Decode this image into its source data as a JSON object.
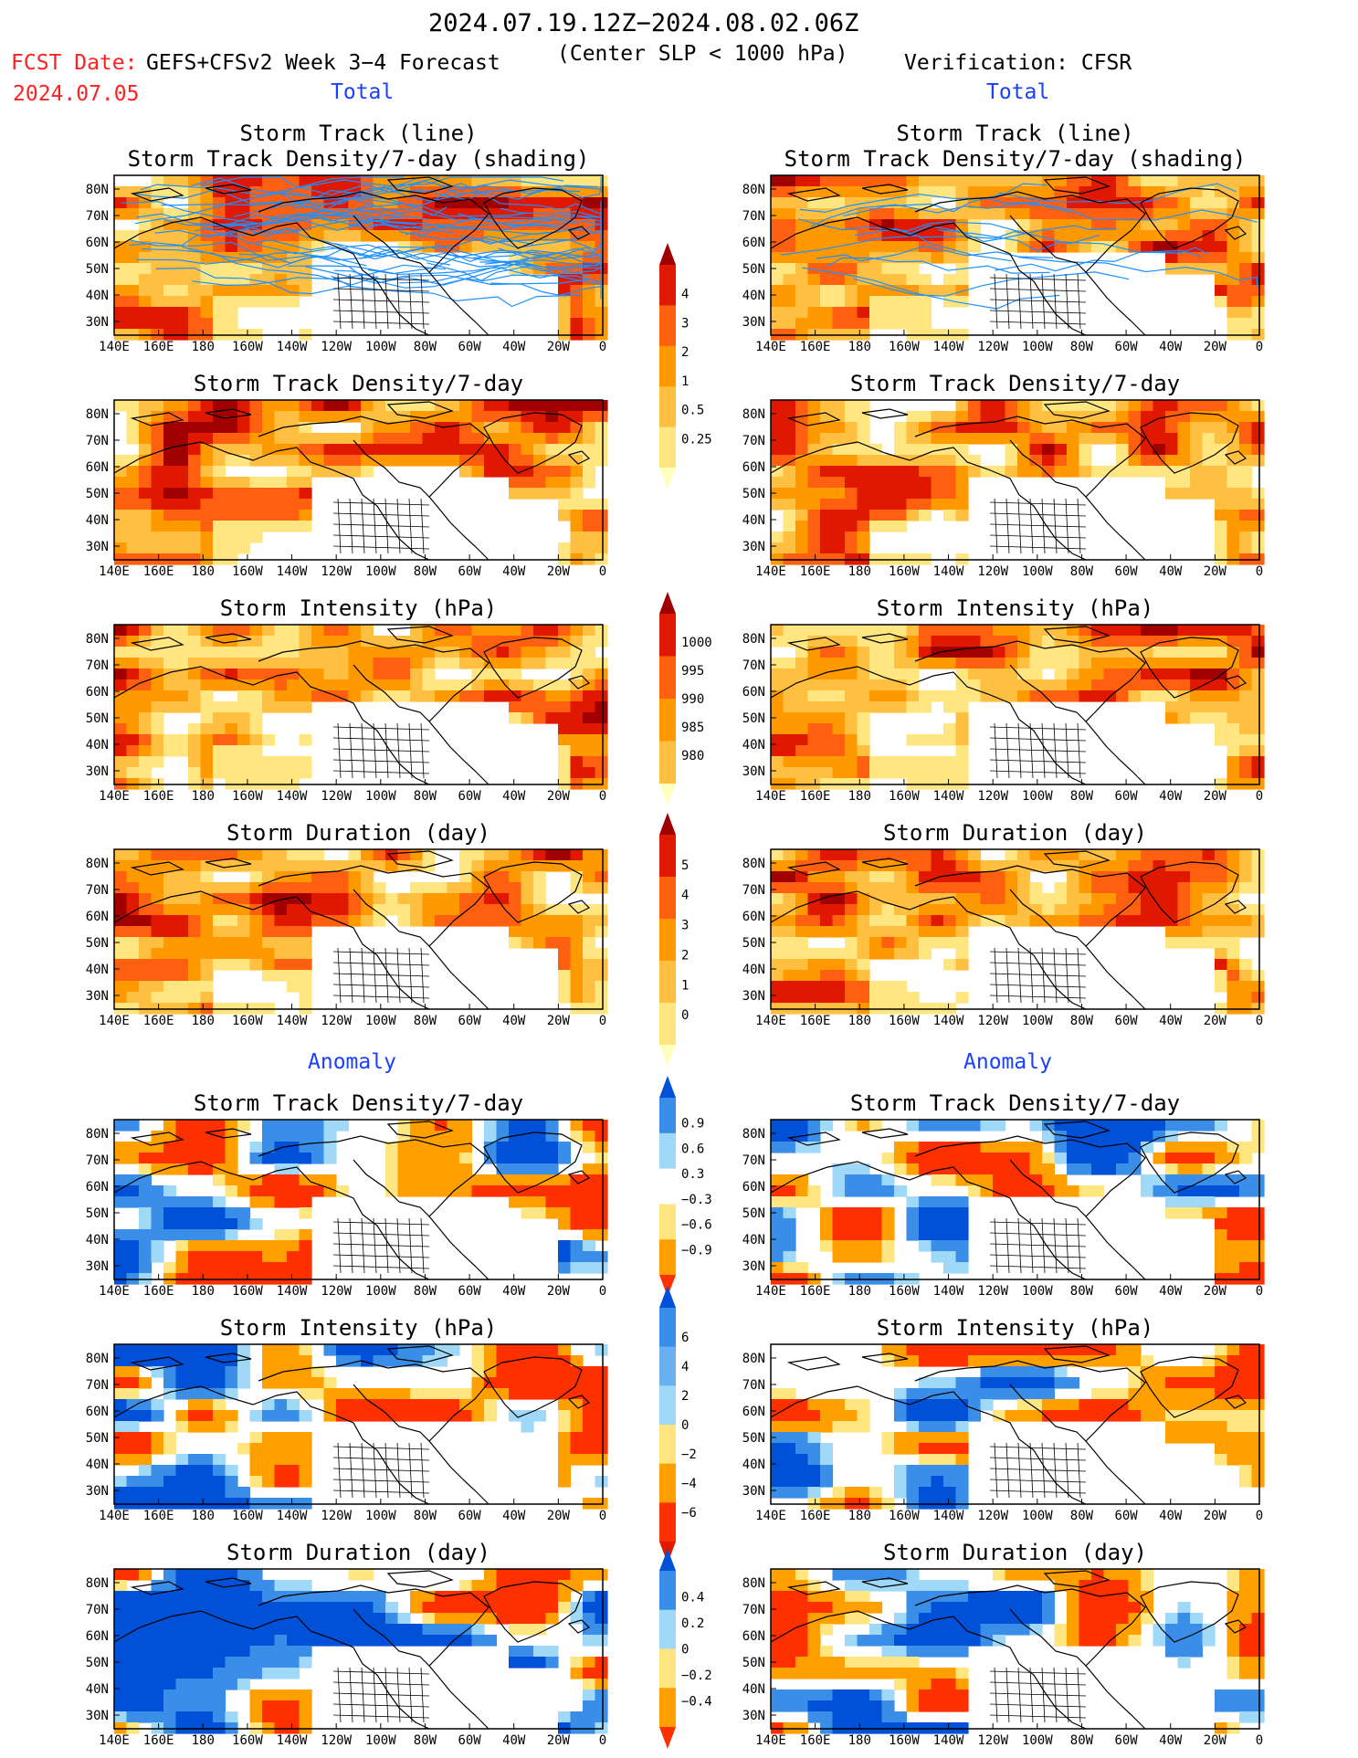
{
  "header": {
    "title": "2024.07.19.12Z−2024.08.02.06Z",
    "fcst_label": "FCST Date:",
    "fcst_date": "2024.07.05",
    "model": "GEFS+CFSv2 Week 3−4 Forecast",
    "subtitle": "(Center SLP < 1000 hPa)",
    "verification": "Verification: CFSR"
  },
  "sections": {
    "total": "Total",
    "anomaly": "Anomaly"
  },
  "axes": {
    "lon_ticks": [
      "140E",
      "160E",
      "180",
      "160W",
      "140W",
      "120W",
      "100W",
      "80W",
      "60W",
      "40W",
      "20W",
      "0"
    ],
    "lat_ticks": [
      "80N",
      "70N",
      "60N",
      "50N",
      "40N",
      "30N"
    ]
  },
  "colors": {
    "red_text": "#ff2020",
    "blue_text": "#1a40ff",
    "track_line": "#1e90ff",
    "warm_scale": [
      "#ffffc0",
      "#ffe680",
      "#ffbf40",
      "#ff9900",
      "#ff6010",
      "#e01800",
      "#a00000"
    ],
    "anom_scale": [
      "#0050d8",
      "#3a8ee8",
      "#a0d8f8",
      "#ffffff",
      "#ffe680",
      "#ffa000",
      "#ff3000"
    ]
  },
  "chart_data": [
    {
      "panel": "total-forecast",
      "type": "heatmap",
      "title": "Storm Track (line)",
      "subtitle": "Storm Track Density/7-day (shading)",
      "xlim": [
        140,
        360
      ],
      "ylim": [
        25,
        85
      ]
    },
    {
      "panel": "total-verification",
      "type": "heatmap",
      "title": "Storm Track (line)",
      "subtitle": "Storm Track Density/7-day (shading)",
      "xlim": [
        140,
        360
      ],
      "ylim": [
        25,
        85
      ]
    },
    {
      "panel": "total-forecast",
      "type": "heatmap",
      "title": "Storm Track Density/7-day",
      "xlim": [
        140,
        360
      ],
      "ylim": [
        25,
        85
      ]
    },
    {
      "panel": "total-verification",
      "type": "heatmap",
      "title": "Storm Track Density/7-day",
      "xlim": [
        140,
        360
      ],
      "ylim": [
        25,
        85
      ]
    },
    {
      "panel": "total-forecast",
      "type": "heatmap",
      "title": "Storm Intensity (hPa)",
      "xlim": [
        140,
        360
      ],
      "ylim": [
        25,
        85
      ]
    },
    {
      "panel": "total-verification",
      "type": "heatmap",
      "title": "Storm Intensity (hPa)",
      "xlim": [
        140,
        360
      ],
      "ylim": [
        25,
        85
      ]
    },
    {
      "panel": "total-forecast",
      "type": "heatmap",
      "title": "Storm Duration (day)",
      "xlim": [
        140,
        360
      ],
      "ylim": [
        25,
        85
      ]
    },
    {
      "panel": "total-verification",
      "type": "heatmap",
      "title": "Storm Duration (day)",
      "xlim": [
        140,
        360
      ],
      "ylim": [
        25,
        85
      ]
    },
    {
      "panel": "anomaly-forecast",
      "type": "heatmap",
      "title": "Storm Track Density/7-day",
      "xlim": [
        140,
        360
      ],
      "ylim": [
        25,
        85
      ]
    },
    {
      "panel": "anomaly-verification",
      "type": "heatmap",
      "title": "Storm Track Density/7-day",
      "xlim": [
        140,
        360
      ],
      "ylim": [
        25,
        85
      ]
    },
    {
      "panel": "anomaly-forecast",
      "type": "heatmap",
      "title": "Storm Intensity (hPa)",
      "xlim": [
        140,
        360
      ],
      "ylim": [
        25,
        85
      ]
    },
    {
      "panel": "anomaly-verification",
      "type": "heatmap",
      "title": "Storm Intensity (hPa)",
      "xlim": [
        140,
        360
      ],
      "ylim": [
        25,
        85
      ]
    },
    {
      "panel": "anomaly-forecast",
      "type": "heatmap",
      "title": "Storm Duration (day)",
      "xlim": [
        140,
        360
      ],
      "ylim": [
        25,
        85
      ]
    },
    {
      "panel": "anomaly-verification",
      "type": "heatmap",
      "title": "Storm Duration (day)",
      "xlim": [
        140,
        360
      ],
      "ylim": [
        25,
        85
      ]
    }
  ],
  "colorbars": [
    {
      "name": "density",
      "levels": [
        "0.25",
        "0.5",
        "1",
        "2",
        "3",
        "4"
      ],
      "colors": [
        "#ffffc0",
        "#ffe680",
        "#ffbf40",
        "#ff9900",
        "#ff6010",
        "#e01800",
        "#a00000"
      ]
    },
    {
      "name": "intensity",
      "levels": [
        "1000",
        "995",
        "990",
        "985",
        "980"
      ],
      "colors": [
        "#ffffc0",
        "#ffbf40",
        "#ff9900",
        "#ff6010",
        "#e01800",
        "#a00000"
      ]
    },
    {
      "name": "duration",
      "levels": [
        "0",
        "1",
        "2",
        "3",
        "4",
        "5"
      ],
      "colors": [
        "#ffffc0",
        "#ffe680",
        "#ffbf40",
        "#ff9900",
        "#ff6010",
        "#e01800",
        "#a00000"
      ]
    },
    {
      "name": "density-anomaly",
      "levels": [
        "0.9",
        "0.6",
        "0.3",
        "−0.3",
        "−0.6",
        "−0.9"
      ],
      "colors": [
        "#ff3000",
        "#ffa000",
        "#ffe680",
        "#ffffff",
        "#a0d8f8",
        "#3a8ee8",
        "#0050d8"
      ]
    },
    {
      "name": "intensity-anomaly",
      "levels": [
        "6",
        "4",
        "2",
        "0",
        "−2",
        "−4",
        "−6"
      ],
      "colors": [
        "#e01800",
        "#ff3000",
        "#ffa000",
        "#ffe680",
        "#a0d8f8",
        "#6ab0f0",
        "#3a8ee8",
        "#0050d8"
      ]
    },
    {
      "name": "duration-anomaly",
      "levels": [
        "0.4",
        "0.2",
        "0",
        "−0.2",
        "−0.4"
      ],
      "colors": [
        "#ff3000",
        "#ffa000",
        "#ffe680",
        "#a0d8f8",
        "#3a8ee8",
        "#0050d8"
      ]
    }
  ]
}
